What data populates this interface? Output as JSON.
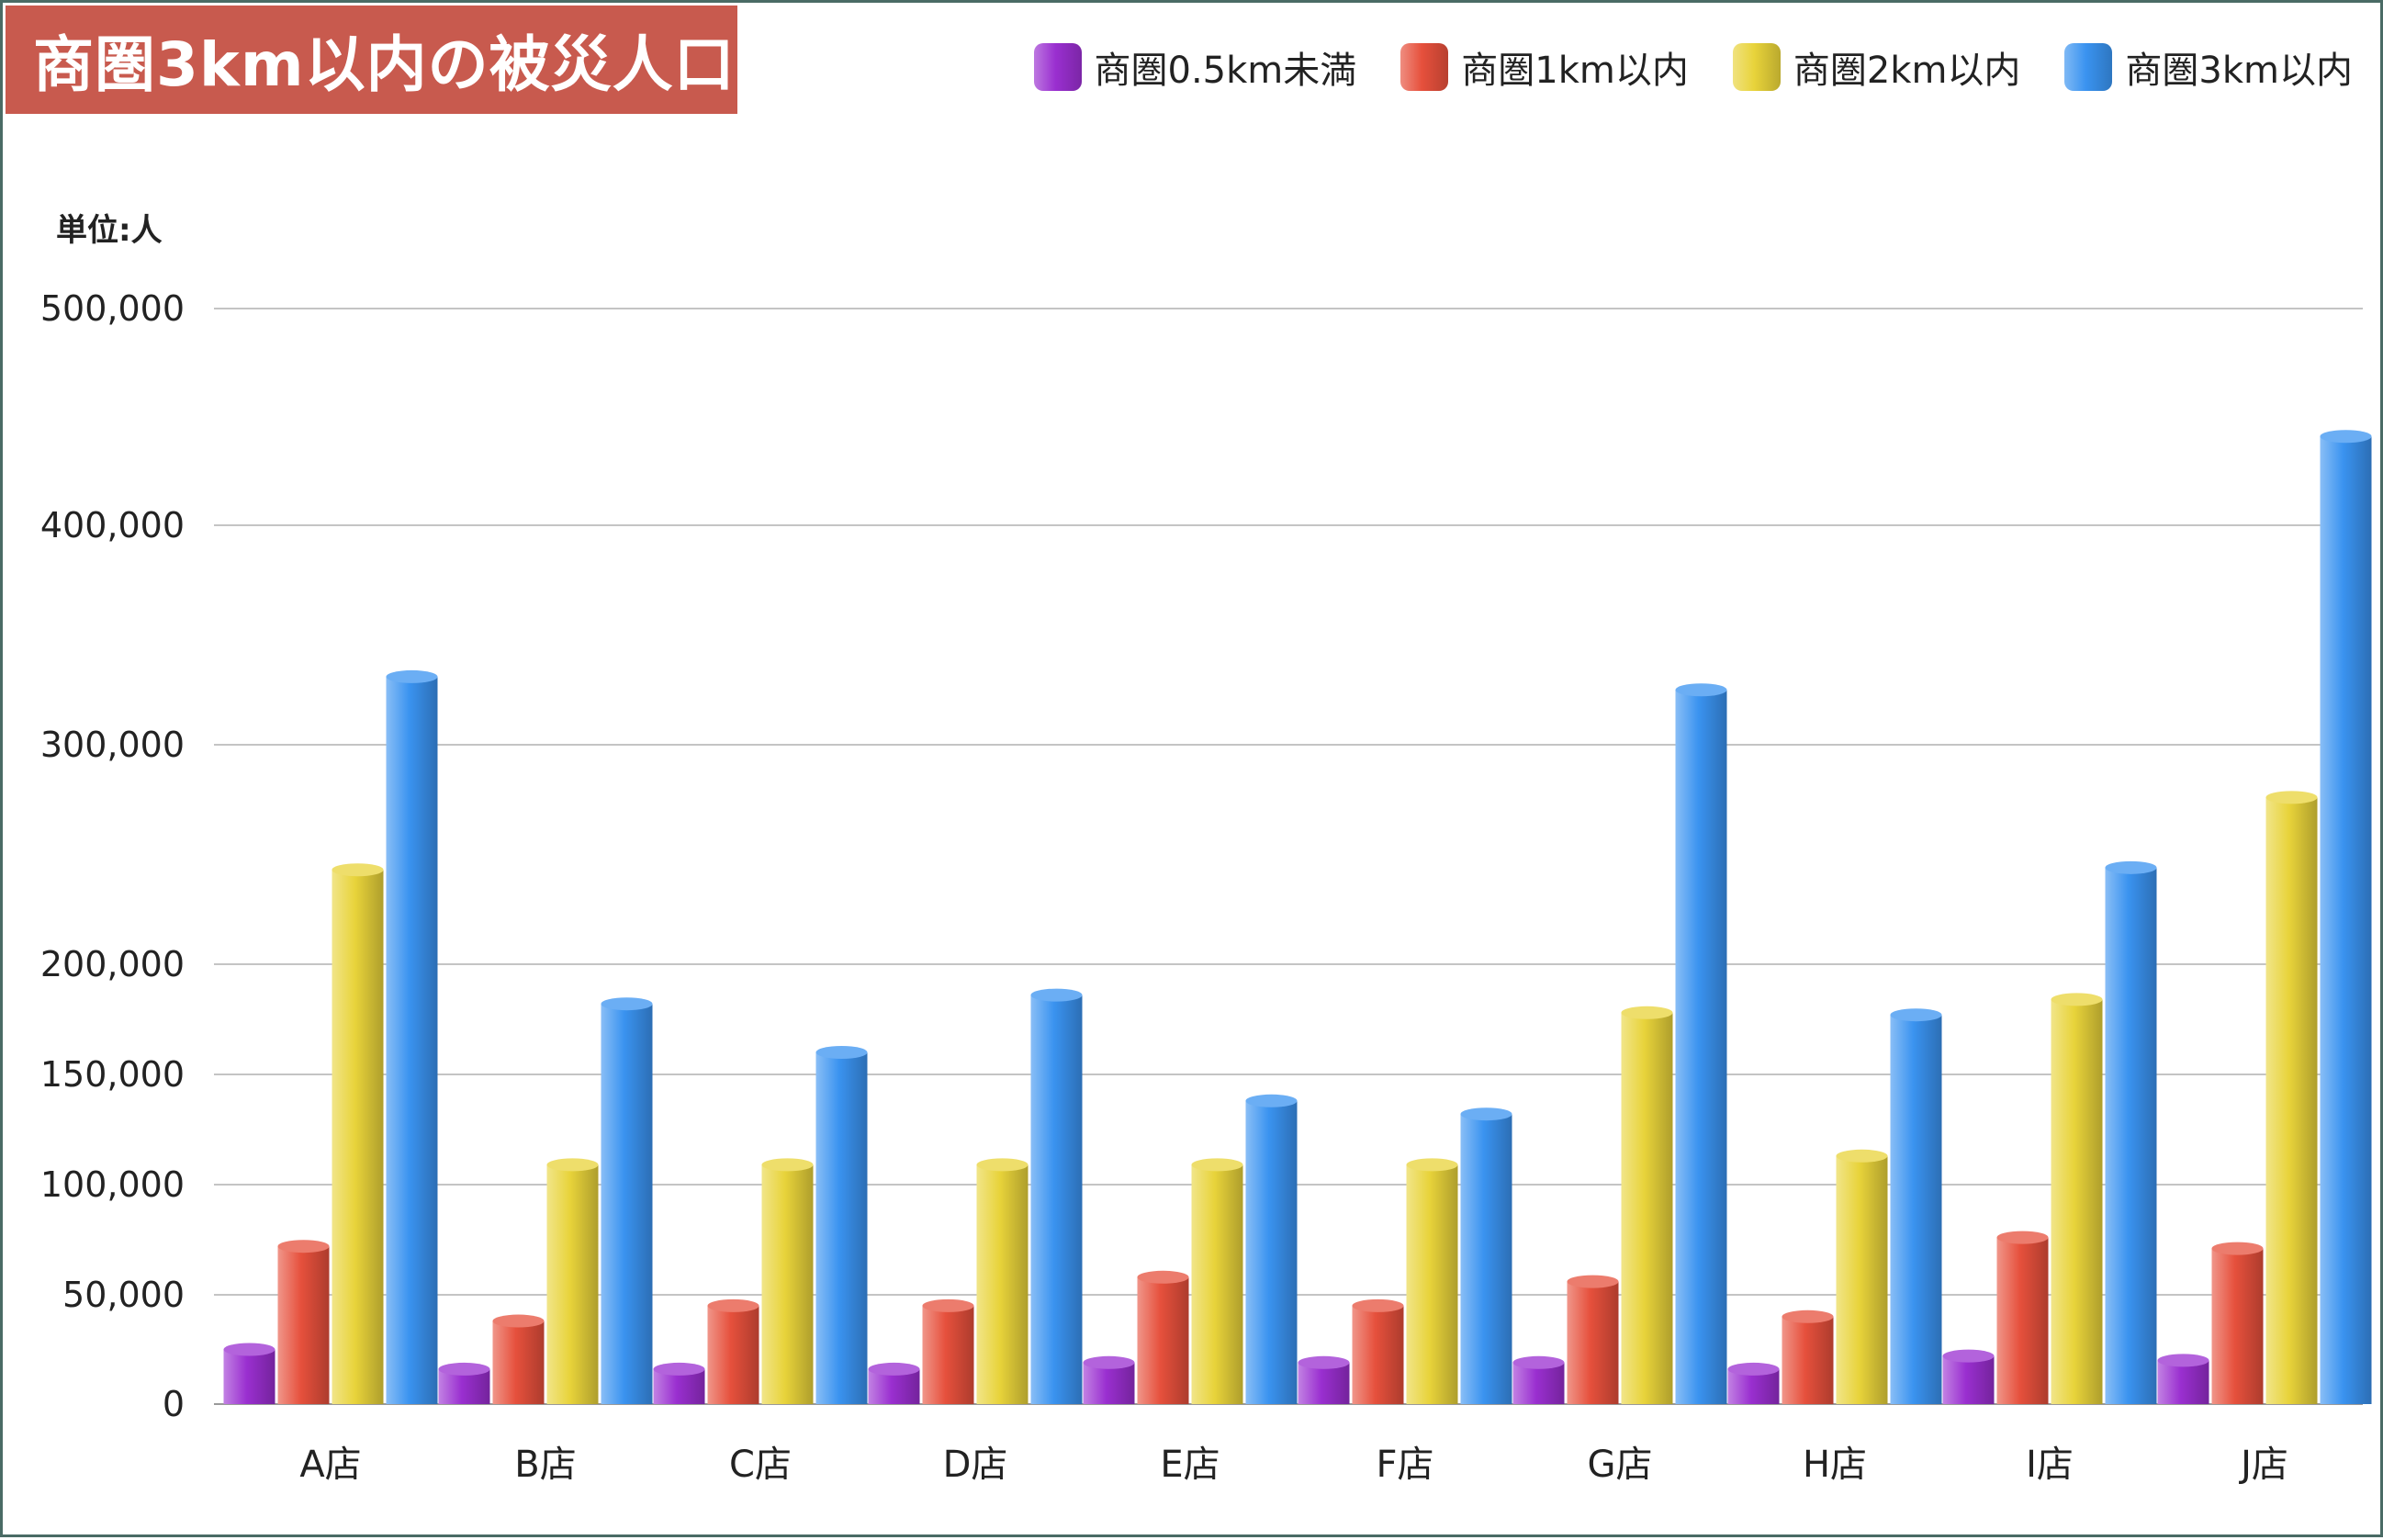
{
  "title": "商圏3km以内の被災人口",
  "unit_label": "単位:人",
  "legend": [
    {
      "label": "商圏0.5km未満",
      "color": "#9a2fd0"
    },
    {
      "label": "商圏1km以内",
      "color": "#e6503c"
    },
    {
      "label": "商圏2km以内",
      "color": "#e8d33a"
    },
    {
      "label": "商圏3km以内",
      "color": "#3a93f0"
    }
  ],
  "chart_data": {
    "type": "bar",
    "title": "商圏3km以内の被災人口",
    "ylabel": "単位:人",
    "categories": [
      "A店",
      "B店",
      "C店",
      "D店",
      "E店",
      "F店",
      "G店",
      "H店",
      "I店",
      "J店"
    ],
    "yticks": [
      {
        "value": 0,
        "label": "0"
      },
      {
        "value": 50000,
        "label": "50,000"
      },
      {
        "value": 100000,
        "label": "100,000"
      },
      {
        "value": 150000,
        "label": "150,000"
      },
      {
        "value": 200000,
        "label": "200,000"
      },
      {
        "value": 300000,
        "label": "300,000"
      },
      {
        "value": 400000,
        "label": "400,000"
      },
      {
        "value": 500000,
        "label": "500,000"
      }
    ],
    "scale_note": "non-linear axis: 0-200,000 spaced per 50,000, 200,000-500,000 spaced per 100,000",
    "ylim": [
      0,
      500000
    ],
    "grid": true,
    "legend_position": "top-right",
    "series": [
      {
        "name": "商圏0.5km未満",
        "color": "#9a2fd0",
        "values": [
          25000,
          16000,
          16000,
          16000,
          19000,
          19000,
          19000,
          16000,
          22000,
          20000
        ]
      },
      {
        "name": "商圏1km以内",
        "color": "#e6503c",
        "values": [
          72000,
          38000,
          45000,
          45000,
          58000,
          45000,
          56000,
          40000,
          76000,
          71000
        ]
      },
      {
        "name": "商圏2km以内",
        "color": "#e8d33a",
        "values": [
          243000,
          109000,
          109000,
          109000,
          109000,
          109000,
          178000,
          113000,
          184000,
          276000
        ]
      },
      {
        "name": "商圏3km以内",
        "color": "#3a93f0",
        "values": [
          331000,
          182000,
          160000,
          186000,
          138000,
          132000,
          325000,
          177000,
          244000,
          441000
        ]
      }
    ]
  }
}
